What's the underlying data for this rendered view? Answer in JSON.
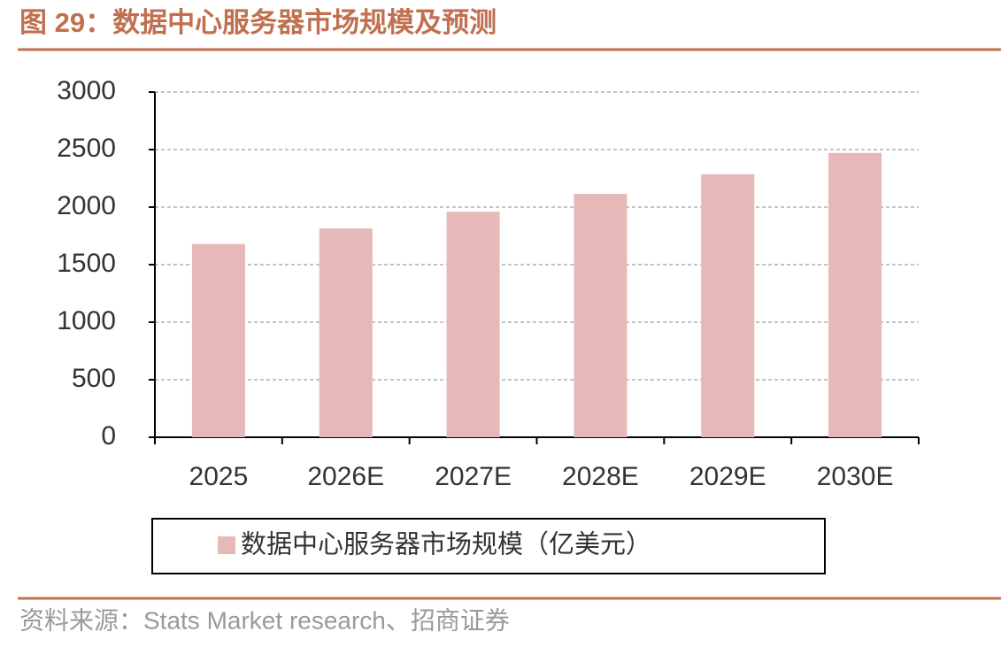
{
  "chart_data": {
    "type": "bar",
    "title": "图 29：数据中心服务器市场规模及预测",
    "source": "资料来源：Stats Market research、招商证券",
    "categories": [
      "2025",
      "2026E",
      "2027E",
      "2028E",
      "2029E",
      "2030E"
    ],
    "series": [
      {
        "name": "数据中心服务器市场规模（亿美元）",
        "color": "#e6b8b7",
        "values": [
          1680,
          1815,
          1960,
          2115,
          2285,
          2470
        ]
      }
    ],
    "ylim": [
      0,
      3000
    ],
    "yticks": [
      0,
      500,
      1000,
      1500,
      2000,
      2500,
      3000
    ],
    "grid": true,
    "legend": "bottom"
  }
}
